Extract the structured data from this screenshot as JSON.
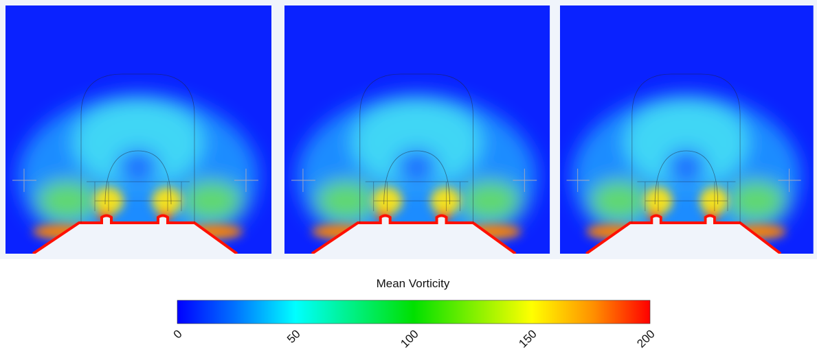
{
  "colorbar": {
    "title": "Mean Vorticity",
    "ticks": [
      0,
      50,
      100,
      150,
      200
    ]
  }
}
